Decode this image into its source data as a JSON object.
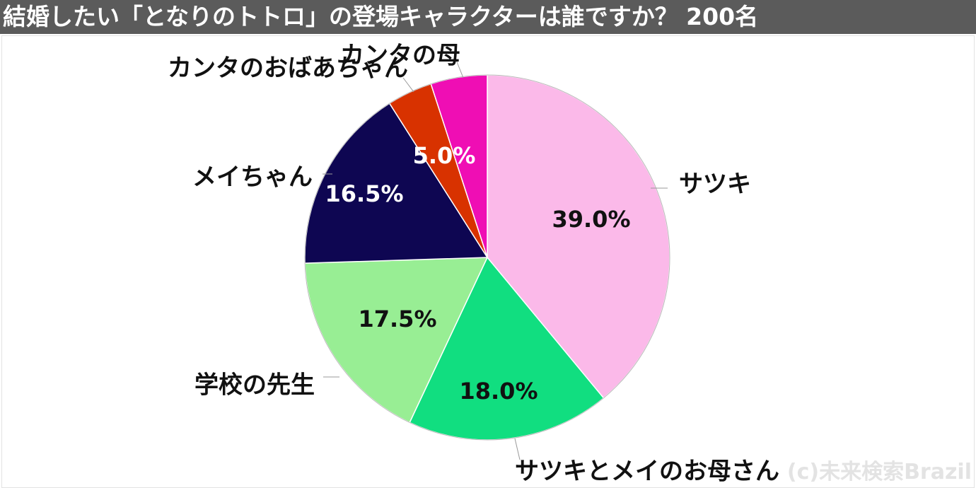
{
  "title": "結婚したい「となりのトトロ」の登場キャラクターは誰ですか？ 200名",
  "credit": "(c)未来検索Brazil",
  "colors": {
    "title_bg": "#5b5b5b",
    "title_text": "#ffffff"
  },
  "chart_data": {
    "type": "pie",
    "start": "12 o'clock",
    "direction": "clockwise",
    "slices": [
      {
        "label": "サツキ",
        "value": 39.0,
        "value_label": "39.0%",
        "color": "#fbb9e9",
        "label_color": "#111111"
      },
      {
        "label": "サツキとメイのお母さん",
        "value": 18.0,
        "value_label": "18.0%",
        "color": "#11de80",
        "label_color": "#111111"
      },
      {
        "label": "学校の先生",
        "value": 17.5,
        "value_label": "17.5%",
        "color": "#98ee94",
        "label_color": "#111111"
      },
      {
        "label": "メイちゃん",
        "value": 16.5,
        "value_label": "16.5%",
        "color": "#0e0652",
        "label_color": "#ffffff"
      },
      {
        "label": "カンタのおばあちゃん",
        "value": 4.0,
        "value_label": "",
        "color": "#d83200",
        "label_color": "#ffffff"
      },
      {
        "label": "カンタの母",
        "value": 5.0,
        "value_label": "5.0%",
        "color": "#ef0eb4",
        "label_color": "#ffffff"
      }
    ]
  }
}
